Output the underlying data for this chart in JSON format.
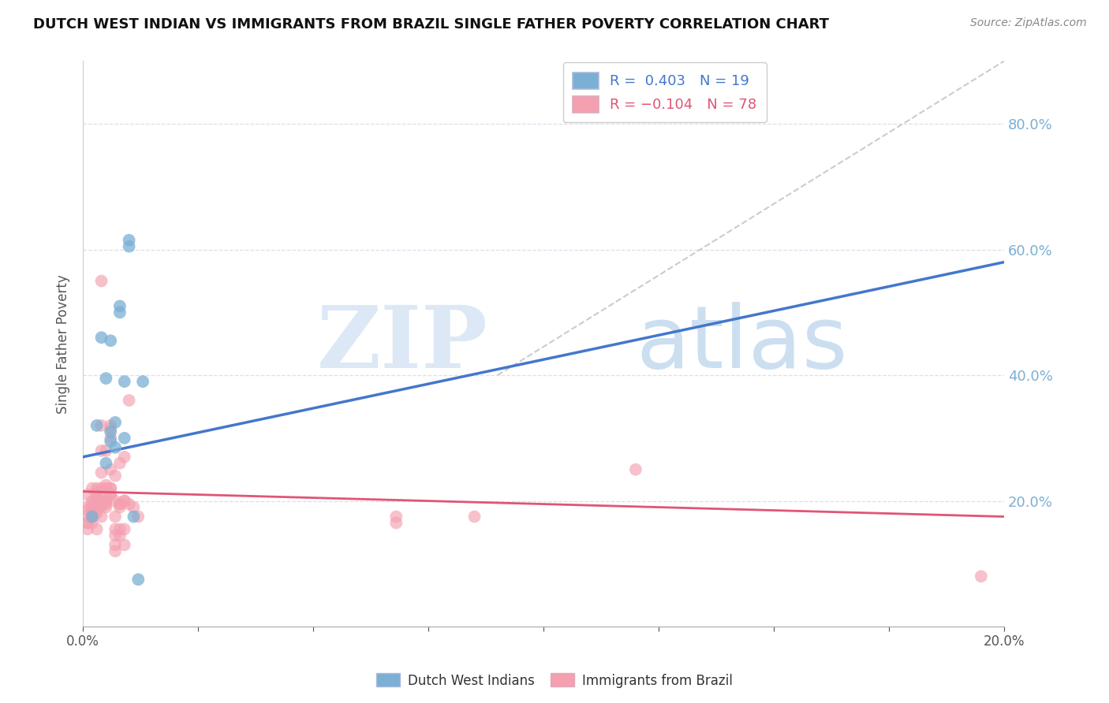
{
  "title": "DUTCH WEST INDIAN VS IMMIGRANTS FROM BRAZIL SINGLE FATHER POVERTY CORRELATION CHART",
  "source": "Source: ZipAtlas.com",
  "ylabel": "Single Father Poverty",
  "right_ytick_labels": [
    "20.0%",
    "40.0%",
    "60.0%",
    "80.0%"
  ],
  "right_ytick_values": [
    0.2,
    0.4,
    0.6,
    0.8
  ],
  "legend_blue_label": "Dutch West Indians",
  "legend_pink_label": "Immigrants from Brazil",
  "blue_color": "#7bafd4",
  "pink_color": "#f4a0b0",
  "blue_line_color": "#4477cc",
  "pink_line_color": "#e05575",
  "gray_line_color": "#cccccc",
  "right_axis_color": "#7bafd4",
  "xlim": [
    0.0,
    0.2
  ],
  "ylim": [
    0.0,
    0.9
  ],
  "xtick_positions": [
    0.0,
    0.025,
    0.05,
    0.075,
    0.1,
    0.125,
    0.15,
    0.175,
    0.2
  ],
  "blue_dots": [
    [
      0.002,
      0.175
    ],
    [
      0.003,
      0.32
    ],
    [
      0.004,
      0.46
    ],
    [
      0.005,
      0.395
    ],
    [
      0.005,
      0.26
    ],
    [
      0.006,
      0.295
    ],
    [
      0.006,
      0.31
    ],
    [
      0.006,
      0.455
    ],
    [
      0.007,
      0.325
    ],
    [
      0.007,
      0.285
    ],
    [
      0.008,
      0.5
    ],
    [
      0.008,
      0.51
    ],
    [
      0.009,
      0.3
    ],
    [
      0.009,
      0.39
    ],
    [
      0.01,
      0.605
    ],
    [
      0.01,
      0.615
    ],
    [
      0.011,
      0.175
    ],
    [
      0.012,
      0.075
    ],
    [
      0.013,
      0.39
    ]
  ],
  "pink_dots": [
    [
      0.001,
      0.175
    ],
    [
      0.001,
      0.165
    ],
    [
      0.001,
      0.155
    ],
    [
      0.001,
      0.19
    ],
    [
      0.001,
      0.185
    ],
    [
      0.001,
      0.21
    ],
    [
      0.001,
      0.165
    ],
    [
      0.002,
      0.175
    ],
    [
      0.002,
      0.18
    ],
    [
      0.002,
      0.185
    ],
    [
      0.002,
      0.19
    ],
    [
      0.002,
      0.195
    ],
    [
      0.002,
      0.2
    ],
    [
      0.002,
      0.22
    ],
    [
      0.002,
      0.165
    ],
    [
      0.002,
      0.175
    ],
    [
      0.002,
      0.18
    ],
    [
      0.002,
      0.175
    ],
    [
      0.003,
      0.2
    ],
    [
      0.003,
      0.21
    ],
    [
      0.003,
      0.215
    ],
    [
      0.003,
      0.21
    ],
    [
      0.003,
      0.18
    ],
    [
      0.003,
      0.185
    ],
    [
      0.003,
      0.19
    ],
    [
      0.003,
      0.2
    ],
    [
      0.003,
      0.155
    ],
    [
      0.003,
      0.22
    ],
    [
      0.004,
      0.175
    ],
    [
      0.004,
      0.19
    ],
    [
      0.004,
      0.195
    ],
    [
      0.004,
      0.2
    ],
    [
      0.004,
      0.22
    ],
    [
      0.004,
      0.245
    ],
    [
      0.004,
      0.28
    ],
    [
      0.004,
      0.32
    ],
    [
      0.004,
      0.55
    ],
    [
      0.005,
      0.19
    ],
    [
      0.005,
      0.2
    ],
    [
      0.005,
      0.21
    ],
    [
      0.005,
      0.22
    ],
    [
      0.005,
      0.225
    ],
    [
      0.005,
      0.28
    ],
    [
      0.005,
      0.195
    ],
    [
      0.005,
      0.2
    ],
    [
      0.006,
      0.21
    ],
    [
      0.006,
      0.22
    ],
    [
      0.006,
      0.3
    ],
    [
      0.006,
      0.32
    ],
    [
      0.006,
      0.21
    ],
    [
      0.006,
      0.22
    ],
    [
      0.006,
      0.25
    ],
    [
      0.006,
      0.315
    ],
    [
      0.007,
      0.13
    ],
    [
      0.007,
      0.155
    ],
    [
      0.007,
      0.2
    ],
    [
      0.007,
      0.24
    ],
    [
      0.007,
      0.12
    ],
    [
      0.007,
      0.145
    ],
    [
      0.007,
      0.175
    ],
    [
      0.008,
      0.195
    ],
    [
      0.008,
      0.26
    ],
    [
      0.008,
      0.145
    ],
    [
      0.008,
      0.155
    ],
    [
      0.008,
      0.195
    ],
    [
      0.008,
      0.19
    ],
    [
      0.009,
      0.2
    ],
    [
      0.009,
      0.13
    ],
    [
      0.009,
      0.155
    ],
    [
      0.009,
      0.2
    ],
    [
      0.009,
      0.27
    ],
    [
      0.01,
      0.195
    ],
    [
      0.01,
      0.36
    ],
    [
      0.011,
      0.19
    ],
    [
      0.012,
      0.175
    ],
    [
      0.068,
      0.175
    ],
    [
      0.068,
      0.165
    ],
    [
      0.085,
      0.175
    ],
    [
      0.12,
      0.25
    ],
    [
      0.195,
      0.08
    ]
  ],
  "blue_line_x": [
    0.0,
    0.2
  ],
  "blue_line_y": [
    0.27,
    0.58
  ],
  "pink_line_x": [
    0.0,
    0.2
  ],
  "pink_line_y": [
    0.215,
    0.175
  ],
  "gray_line_x": [
    0.09,
    0.2
  ],
  "gray_line_y": [
    0.4,
    0.9
  ]
}
